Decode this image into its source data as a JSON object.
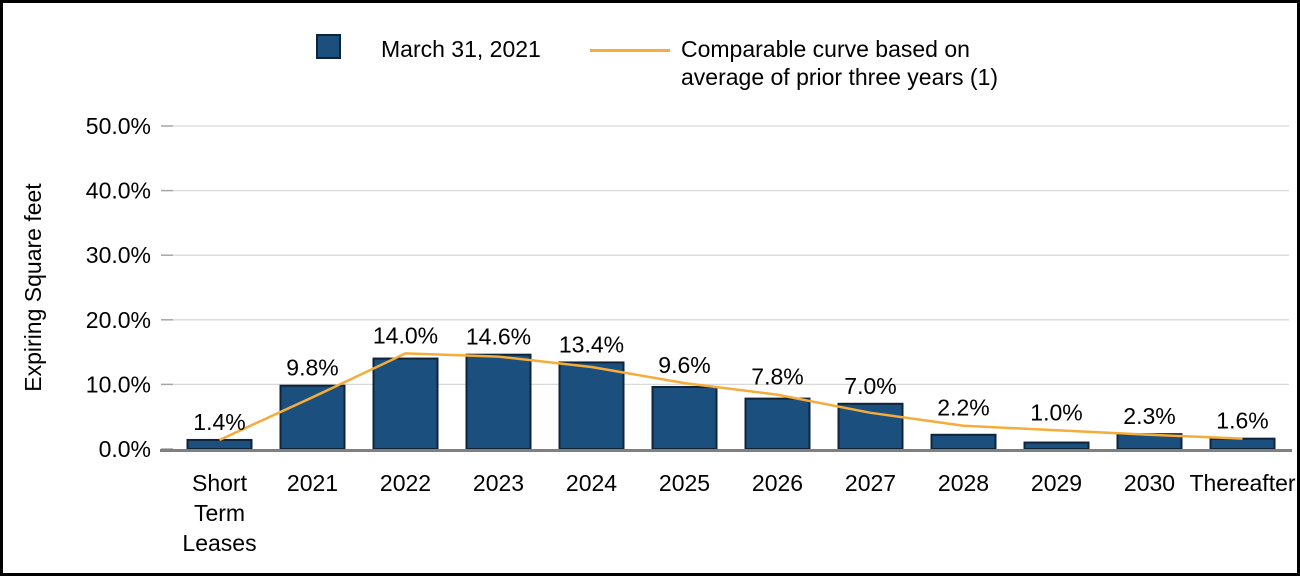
{
  "chart_data": {
    "type": "bar",
    "title": "",
    "xlabel": "",
    "ylabel": "Expiring Square feet",
    "ylim": [
      0,
      50
    ],
    "ytick_step": 10,
    "yticks": [
      "0.0%",
      "10.0%",
      "20.0%",
      "30.0%",
      "40.0%",
      "50.0%"
    ],
    "grid": true,
    "legend_position": "top",
    "categories": [
      "Short Term Leases",
      "2021",
      "2022",
      "2023",
      "2024",
      "2025",
      "2026",
      "2027",
      "2028",
      "2029",
      "2030",
      "Thereafter"
    ],
    "series": [
      {
        "name": "March 31, 2021",
        "type": "bar",
        "color": "#1B4F7D",
        "border_color": "#0F2439",
        "values": [
          1.4,
          9.8,
          14.0,
          14.6,
          13.4,
          9.6,
          7.8,
          7.0,
          2.2,
          1.0,
          2.3,
          1.6
        ],
        "labels": [
          "1.4%",
          "9.8%",
          "14.0%",
          "14.6%",
          "13.4%",
          "9.6%",
          "7.8%",
          "7.0%",
          "2.2%",
          "1.0%",
          "2.3%",
          "1.6%"
        ]
      },
      {
        "name": "Comparable curve based on average of prior three years (1)",
        "type": "line",
        "color": "#F5AC3B",
        "values": [
          1.4,
          8.0,
          14.8,
          14.3,
          12.7,
          10.2,
          8.4,
          5.6,
          3.6,
          2.9,
          2.2,
          1.6
        ]
      }
    ],
    "colors": {
      "gridline": "#D9D9D9",
      "axis_line": "#808080",
      "tick_mark": "#A6A6A6",
      "text": "#000000"
    }
  }
}
